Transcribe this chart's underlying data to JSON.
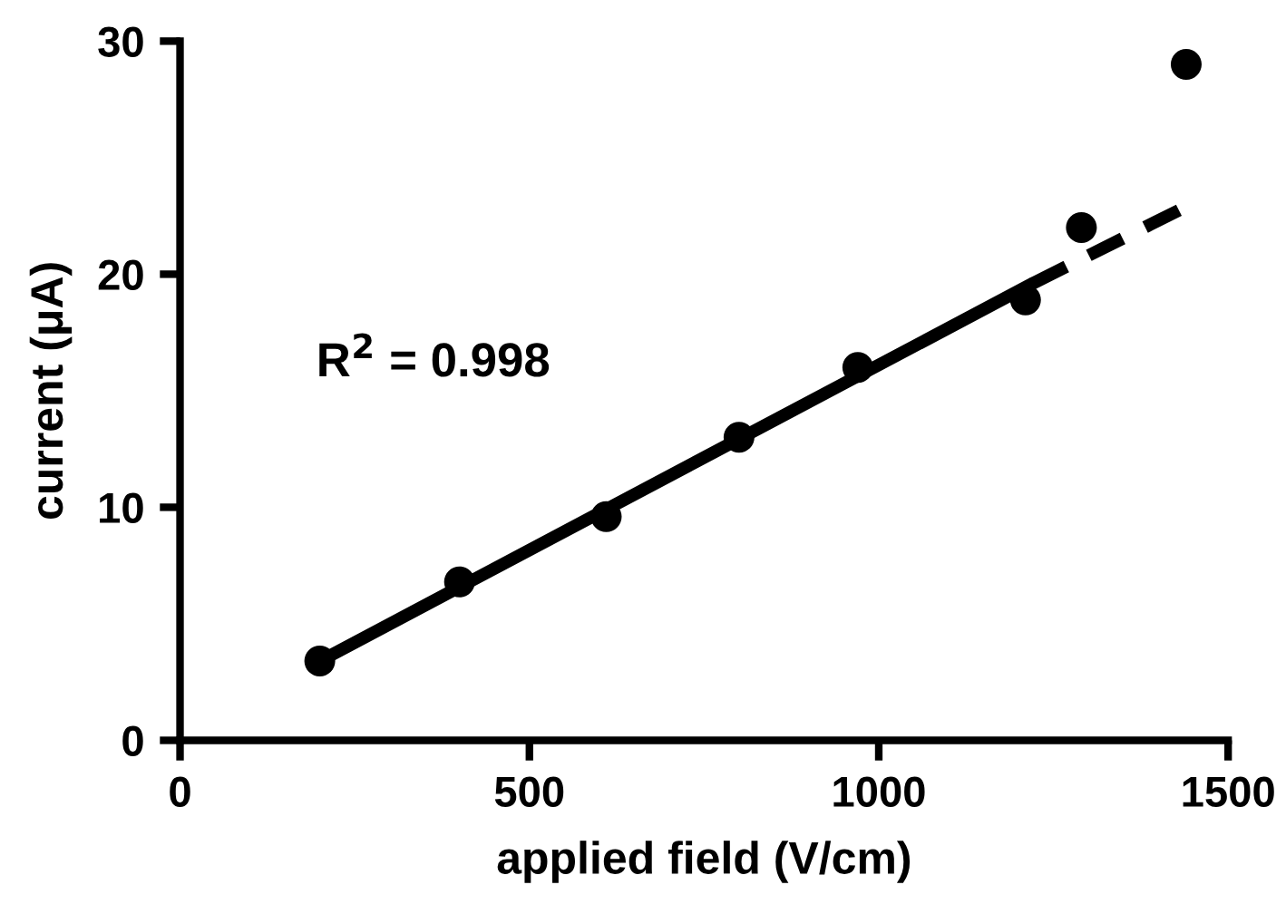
{
  "chart_data": {
    "type": "scatter",
    "xlabel": "applied field (V/cm)",
    "ylabel": "current (μA)",
    "annotations": [
      "R$^{2}$ = 0.998"
    ],
    "series": [
      {
        "color": "#000000",
        "marker": "circle",
        "x": [
          200,
          400,
          610,
          800,
          970,
          1210,
          1290,
          1440
        ],
        "values": [
          3.4,
          6.8,
          9.6,
          13,
          16,
          18.9,
          22,
          29
        ]
      },
      {
        "type": "line",
        "color": "#000000",
        "line_style": "solid",
        "x": [
          200,
          1220
        ],
        "values": [
          3.4,
          19.6
        ]
      },
      {
        "type": "line",
        "color": "#000000",
        "line_style": "dashed",
        "x": [
          1220,
          1440
        ],
        "values": [
          19.6,
          22.9
        ]
      }
    ],
    "xlim": [
      0,
      1500
    ],
    "xticks": [
      0,
      500,
      1000,
      1500
    ],
    "ylim": [
      0,
      30
    ],
    "yticks": [
      0,
      10,
      20,
      30
    ],
    "grid": false
  }
}
